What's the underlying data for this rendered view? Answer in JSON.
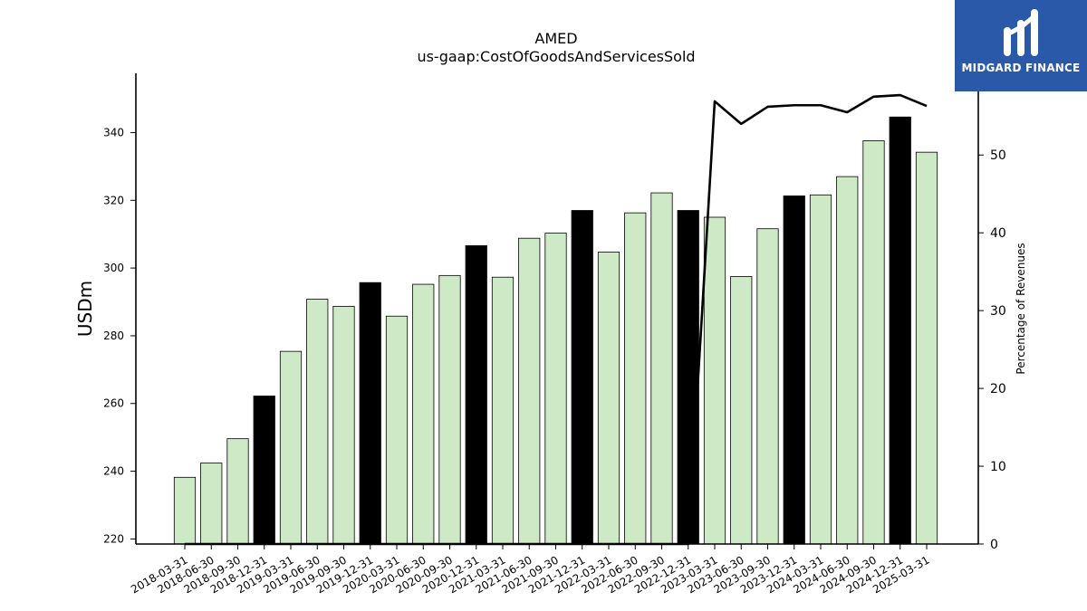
{
  "chart_data": {
    "type": "bar",
    "title": "AMED",
    "subtitle": "us-gaap:CostOfGoodsAndServicesSold",
    "ylabel": "USDm",
    "y2label": "Percentage of Revenues",
    "ylim": [
      218.5,
      357.5
    ],
    "y2lim": [
      0,
      60.5
    ],
    "yticks": [
      220,
      240,
      260,
      280,
      300,
      320,
      340
    ],
    "y2ticks": [
      0,
      10,
      20,
      30,
      40,
      50
    ],
    "categories": [
      "2018-03-31",
      "2018-06-30",
      "2018-09-30",
      "2018-12-31",
      "2019-03-31",
      "2019-06-30",
      "2019-09-30",
      "2019-12-31",
      "2020-03-31",
      "2020-06-30",
      "2020-09-30",
      "2020-12-31",
      "2021-03-31",
      "2021-06-30",
      "2021-09-30",
      "2021-12-31",
      "2022-03-31",
      "2022-06-30",
      "2022-09-30",
      "2022-12-31",
      "2023-03-31",
      "2023-06-30",
      "2023-09-30",
      "2023-12-31",
      "2024-03-31",
      "2024-06-30",
      "2024-09-30",
      "2024-12-31",
      "2025-03-31"
    ],
    "series": [
      {
        "values": [
          238.2,
          242.4,
          249.6,
          262.2,
          275.4,
          290.8,
          288.7,
          295.7,
          285.8,
          295.2,
          297.8,
          306.6,
          297.3,
          308.8,
          310.3,
          317.0,
          304.7,
          316.3,
          322.2,
          317.0,
          315.0,
          297.5,
          311.6,
          321.3,
          321.6,
          327.0,
          337.6,
          344.6,
          334.2
        ],
        "colors": [
          "#cde9c6",
          "#cde9c6",
          "#cde9c6",
          "#000000",
          "#cde9c6",
          "#cde9c6",
          "#cde9c6",
          "#000000",
          "#cde9c6",
          "#cde9c6",
          "#cde9c6",
          "#000000",
          "#cde9c6",
          "#cde9c6",
          "#cde9c6",
          "#000000",
          "#cde9c6",
          "#cde9c6",
          "#cde9c6",
          "#000000",
          "#cde9c6",
          "#cde9c6",
          "#cde9c6",
          "#000000",
          "#cde9c6",
          "#cde9c6",
          "#cde9c6",
          "#000000",
          "#cde9c6"
        ]
      },
      {
        "type": "line",
        "axis": "right",
        "values": [
          0,
          0,
          0,
          0,
          0,
          0,
          0,
          0,
          0,
          0,
          0,
          0,
          0,
          0,
          0,
          0,
          0,
          0,
          0,
          0,
          56.9,
          54.0,
          56.2,
          56.4,
          56.4,
          55.5,
          57.5,
          57.7,
          56.3
        ]
      }
    ]
  },
  "logo": {
    "text": "MIDGARD FINANCE",
    "background": "#2b59aa"
  }
}
